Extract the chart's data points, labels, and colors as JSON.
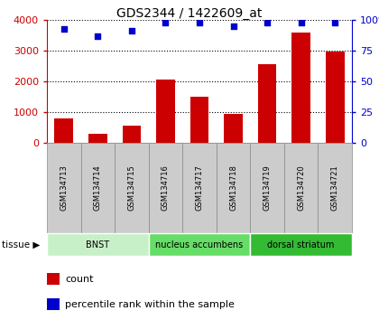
{
  "title": "GDS2344 / 1422609_at",
  "samples": [
    "GSM134713",
    "GSM134714",
    "GSM134715",
    "GSM134716",
    "GSM134717",
    "GSM134718",
    "GSM134719",
    "GSM134720",
    "GSM134721"
  ],
  "counts": [
    800,
    300,
    550,
    2050,
    1500,
    950,
    2550,
    3600,
    2980
  ],
  "percentiles": [
    93,
    87,
    91,
    98,
    98,
    95,
    98,
    98,
    98
  ],
  "tissues": [
    {
      "label": "BNST",
      "start": 0,
      "end": 3,
      "color": "#c8f0c8"
    },
    {
      "label": "nucleus accumbens",
      "start": 3,
      "end": 6,
      "color": "#66dd66"
    },
    {
      "label": "dorsal striatum",
      "start": 6,
      "end": 9,
      "color": "#33bb33"
    }
  ],
  "bar_color": "#cc0000",
  "dot_color": "#0000cc",
  "ylim_left": [
    0,
    4000
  ],
  "ylim_right": [
    0,
    100
  ],
  "yticks_left": [
    0,
    1000,
    2000,
    3000,
    4000
  ],
  "ytick_labels_left": [
    "0",
    "1000",
    "2000",
    "3000",
    "4000"
  ],
  "yticks_right": [
    0,
    25,
    50,
    75,
    100
  ],
  "ytick_labels_right": [
    "0",
    "25",
    "50",
    "75",
    "100%"
  ],
  "background_color": "#ffffff",
  "tissue_label": "tissue ▶",
  "legend_count_label": "count",
  "legend_pct_label": "percentile rank within the sample",
  "label_box_color": "#cccccc",
  "label_box_edge": "#888888"
}
